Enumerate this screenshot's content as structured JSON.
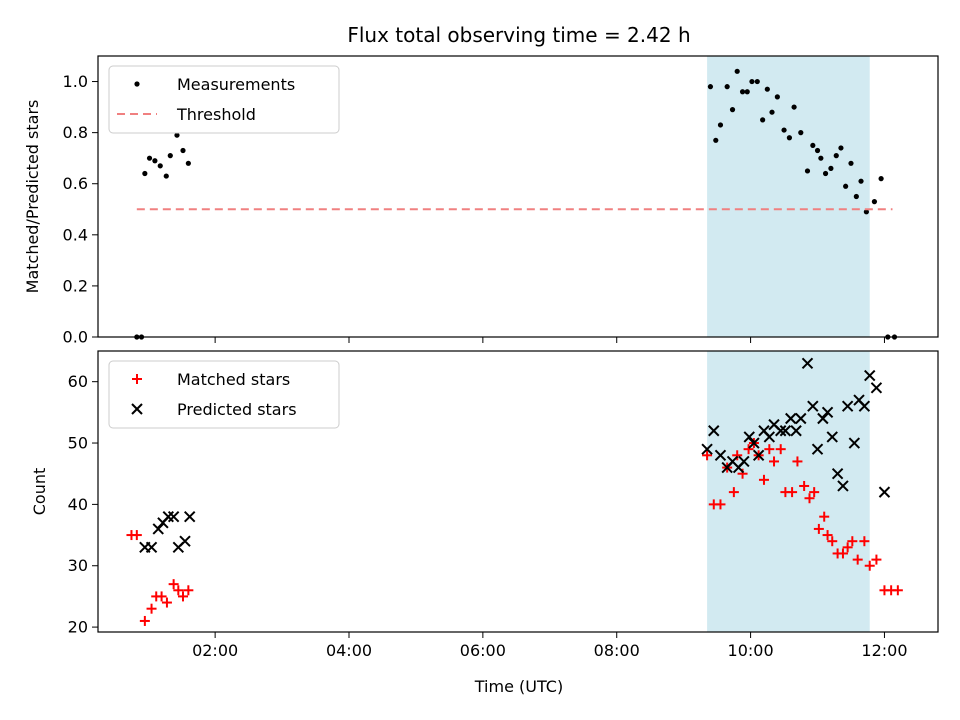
{
  "chart_data": [
    {
      "type": "scatter",
      "title": "Flux total observing time = 2.42 h",
      "xlabel": "",
      "ylabel": "Matched/Predicted stars",
      "xlim": [
        0.25,
        12.8
      ],
      "ylim": [
        0,
        1.1
      ],
      "y_ticks": [
        0.0,
        0.2,
        0.4,
        0.6,
        0.8,
        1.0
      ],
      "y_tick_labels": [
        "0.0",
        "0.2",
        "0.4",
        "0.6",
        "0.8",
        "1.0"
      ],
      "x_ticks": [
        2,
        4,
        6,
        8,
        10,
        12
      ],
      "shaded_region": {
        "x": [
          9.35,
          11.78
        ],
        "color": "#add8e6"
      },
      "legend_position": "upper-left",
      "series": [
        {
          "name": "Measurements",
          "kind": "scatter",
          "color": "#000000",
          "points": [
            [
              0.83,
              0.0
            ],
            [
              0.9,
              0.0
            ],
            [
              0.95,
              0.64
            ],
            [
              1.02,
              0.7
            ],
            [
              1.1,
              0.69
            ],
            [
              1.18,
              0.67
            ],
            [
              1.27,
              0.63
            ],
            [
              1.33,
              0.71
            ],
            [
              1.43,
              0.79
            ],
            [
              1.52,
              0.73
            ],
            [
              1.6,
              0.68
            ],
            [
              9.4,
              0.98
            ],
            [
              9.48,
              0.77
            ],
            [
              9.55,
              0.83
            ],
            [
              9.65,
              0.98
            ],
            [
              9.73,
              0.89
            ],
            [
              9.8,
              1.04
            ],
            [
              9.88,
              0.96
            ],
            [
              9.95,
              0.96
            ],
            [
              10.02,
              1.0
            ],
            [
              10.1,
              1.0
            ],
            [
              10.18,
              0.85
            ],
            [
              10.25,
              0.97
            ],
            [
              10.32,
              0.88
            ],
            [
              10.4,
              0.94
            ],
            [
              10.5,
              0.81
            ],
            [
              10.58,
              0.78
            ],
            [
              10.65,
              0.9
            ],
            [
              10.75,
              0.8
            ],
            [
              10.85,
              0.65
            ],
            [
              10.93,
              0.75
            ],
            [
              11.0,
              0.73
            ],
            [
              11.05,
              0.7
            ],
            [
              11.12,
              0.64
            ],
            [
              11.2,
              0.66
            ],
            [
              11.28,
              0.71
            ],
            [
              11.35,
              0.74
            ],
            [
              11.42,
              0.59
            ],
            [
              11.5,
              0.68
            ],
            [
              11.58,
              0.55
            ],
            [
              11.65,
              0.61
            ],
            [
              11.73,
              0.49
            ],
            [
              11.85,
              0.53
            ],
            [
              11.95,
              0.62
            ],
            [
              12.05,
              0.0
            ],
            [
              12.15,
              0.0
            ]
          ]
        },
        {
          "name": "Threshold",
          "kind": "dashed-line",
          "color": "#f08080",
          "points": [
            [
              0.83,
              0.5
            ],
            [
              12.12,
              0.5
            ]
          ]
        }
      ]
    },
    {
      "type": "scatter",
      "title": "",
      "xlabel": "Time (UTC)",
      "ylabel": "Count",
      "xlim": [
        0.25,
        12.8
      ],
      "ylim": [
        19.2,
        65
      ],
      "y_ticks": [
        20,
        30,
        40,
        50,
        60
      ],
      "y_tick_labels": [
        "20",
        "30",
        "40",
        "50",
        "60"
      ],
      "x_ticks": [
        2,
        4,
        6,
        8,
        10,
        12
      ],
      "x_tick_labels": [
        "02:00",
        "04:00",
        "06:00",
        "08:00",
        "10:00",
        "12:00"
      ],
      "shaded_region": {
        "x": [
          9.35,
          11.78
        ],
        "color": "#add8e6"
      },
      "legend_position": "upper-left",
      "series": [
        {
          "name": "Matched stars",
          "kind": "plus",
          "color": "#ff0000",
          "points": [
            [
              0.75,
              35
            ],
            [
              0.83,
              35
            ],
            [
              0.95,
              21
            ],
            [
              1.05,
              23
            ],
            [
              1.12,
              25
            ],
            [
              1.2,
              25
            ],
            [
              1.28,
              24
            ],
            [
              1.38,
              27
            ],
            [
              1.45,
              26
            ],
            [
              1.52,
              25
            ],
            [
              1.6,
              26
            ],
            [
              9.35,
              48
            ],
            [
              9.45,
              40
            ],
            [
              9.55,
              40
            ],
            [
              9.65,
              46
            ],
            [
              9.75,
              42
            ],
            [
              9.8,
              48
            ],
            [
              9.88,
              45
            ],
            [
              9.97,
              49
            ],
            [
              10.05,
              50
            ],
            [
              10.12,
              48
            ],
            [
              10.2,
              44
            ],
            [
              10.28,
              49
            ],
            [
              10.35,
              47
            ],
            [
              10.45,
              49
            ],
            [
              10.52,
              42
            ],
            [
              10.62,
              42
            ],
            [
              10.7,
              47
            ],
            [
              10.8,
              43
            ],
            [
              10.88,
              41
            ],
            [
              10.95,
              42
            ],
            [
              11.02,
              36
            ],
            [
              11.1,
              38
            ],
            [
              11.15,
              35
            ],
            [
              11.22,
              34
            ],
            [
              11.3,
              32
            ],
            [
              11.38,
              32
            ],
            [
              11.45,
              33
            ],
            [
              11.52,
              34
            ],
            [
              11.6,
              31
            ],
            [
              11.7,
              34
            ],
            [
              11.78,
              30
            ],
            [
              11.88,
              31
            ],
            [
              12.0,
              26
            ],
            [
              12.1,
              26
            ],
            [
              12.2,
              26
            ]
          ]
        },
        {
          "name": "Predicted stars",
          "kind": "x",
          "color": "#000000",
          "points": [
            [
              0.95,
              33
            ],
            [
              1.05,
              33
            ],
            [
              1.15,
              36
            ],
            [
              1.22,
              37
            ],
            [
              1.3,
              38
            ],
            [
              1.38,
              38
            ],
            [
              1.45,
              33
            ],
            [
              1.55,
              34
            ],
            [
              1.62,
              38
            ],
            [
              9.35,
              49
            ],
            [
              9.45,
              52
            ],
            [
              9.55,
              48
            ],
            [
              9.65,
              46
            ],
            [
              9.73,
              47
            ],
            [
              9.82,
              46
            ],
            [
              9.9,
              47
            ],
            [
              9.98,
              51
            ],
            [
              10.05,
              50
            ],
            [
              10.12,
              48
            ],
            [
              10.2,
              52
            ],
            [
              10.28,
              51
            ],
            [
              10.35,
              53
            ],
            [
              10.45,
              52
            ],
            [
              10.52,
              52
            ],
            [
              10.6,
              54
            ],
            [
              10.68,
              52
            ],
            [
              10.75,
              54
            ],
            [
              10.85,
              63
            ],
            [
              10.93,
              56
            ],
            [
              11.0,
              49
            ],
            [
              11.08,
              54
            ],
            [
              11.15,
              55
            ],
            [
              11.22,
              51
            ],
            [
              11.3,
              45
            ],
            [
              11.38,
              43
            ],
            [
              11.45,
              56
            ],
            [
              11.55,
              50
            ],
            [
              11.62,
              57
            ],
            [
              11.7,
              56
            ],
            [
              11.78,
              61
            ],
            [
              11.88,
              59
            ],
            [
              12.0,
              42
            ]
          ]
        }
      ]
    }
  ]
}
